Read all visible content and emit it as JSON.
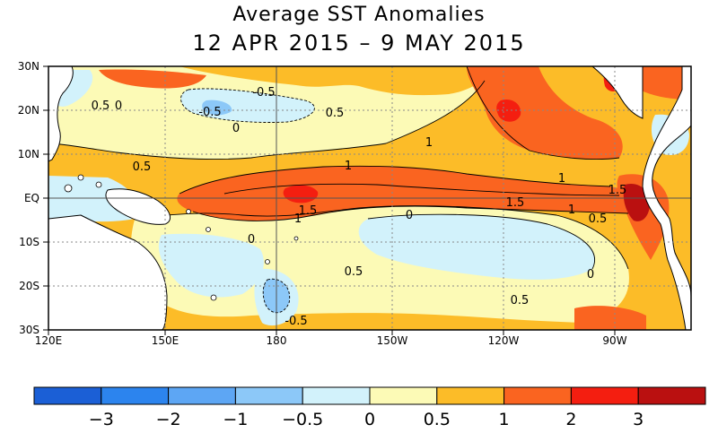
{
  "title": "Average SST Anomalies",
  "subtitle": "12 APR 2015 – 9 MAY 2015",
  "map": {
    "lat_labels": [
      "30N",
      "20N",
      "10N",
      "EQ",
      "10S",
      "20S",
      "30S"
    ],
    "lon_labels": [
      "120E",
      "150E",
      "180",
      "150W",
      "120W",
      "90W"
    ],
    "contour_labels": [
      "0.5",
      "0",
      "-0.5",
      "-0.5",
      "0",
      "0.5",
      "1",
      "0.5",
      "1",
      "1",
      "1.5",
      "1.5",
      "1",
      "1.5",
      "0.5",
      "0",
      "0",
      "0.5",
      "0",
      "0.5",
      "-0.5",
      "1"
    ]
  },
  "colorbar": {
    "colors": [
      "#1b5fd6",
      "#2c84ee",
      "#5da6f4",
      "#8cc8f8",
      "#d2f2fb",
      "#fcfab6",
      "#fcbc28",
      "#fa6420",
      "#f41e10",
      "#ba1010"
    ],
    "labels": [
      "−3",
      "−2",
      "−1",
      "−0.5",
      "0",
      "0.5",
      "1",
      "2",
      "3"
    ]
  }
}
